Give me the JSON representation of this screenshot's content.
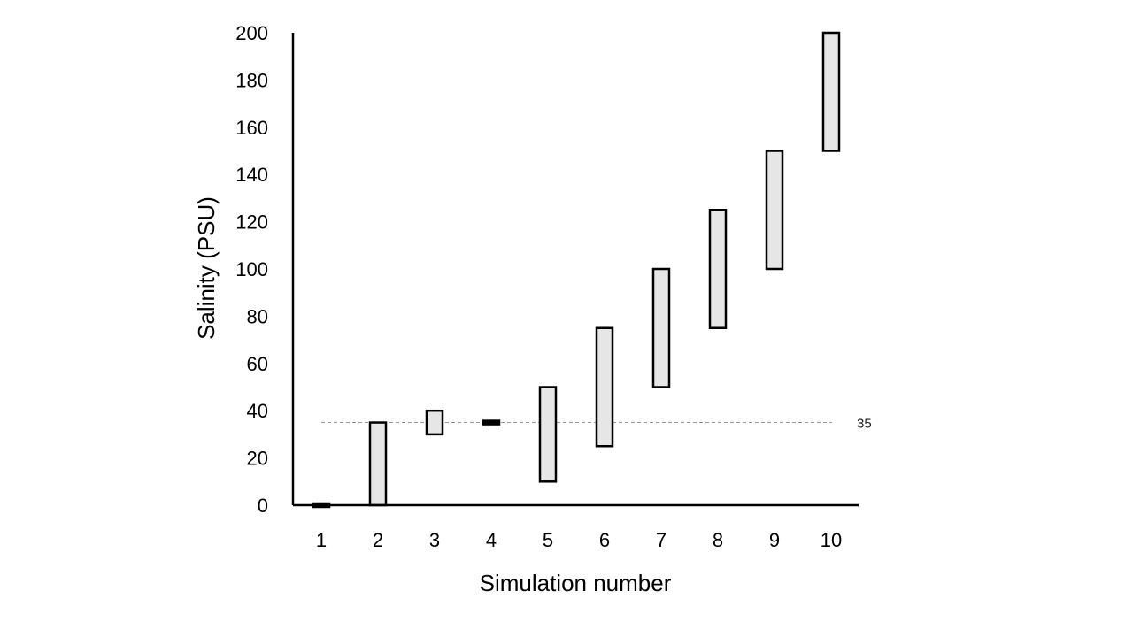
{
  "chart_data": {
    "type": "bar",
    "subtype": "floating-range",
    "xlabel": "Simulation number",
    "ylabel": "Salinity (PSU)",
    "categories": [
      "1",
      "2",
      "3",
      "4",
      "5",
      "6",
      "7",
      "8",
      "9",
      "10"
    ],
    "ranges": [
      [
        0,
        0
      ],
      [
        0,
        35
      ],
      [
        30,
        40
      ],
      [
        35,
        35
      ],
      [
        10,
        50
      ],
      [
        25,
        75
      ],
      [
        50,
        100
      ],
      [
        75,
        125
      ],
      [
        100,
        150
      ],
      [
        150,
        200
      ]
    ],
    "ylim": [
      0,
      200
    ],
    "yticks": [
      0,
      20,
      40,
      60,
      80,
      100,
      120,
      140,
      160,
      180,
      200
    ],
    "reference_line": {
      "value": 35,
      "label": "35",
      "style": "dashed"
    },
    "grid": false,
    "legend": "none",
    "colors": {
      "bar_fill": "#e6e6e6",
      "bar_stroke": "#000000",
      "reference_line": "#999999"
    }
  }
}
